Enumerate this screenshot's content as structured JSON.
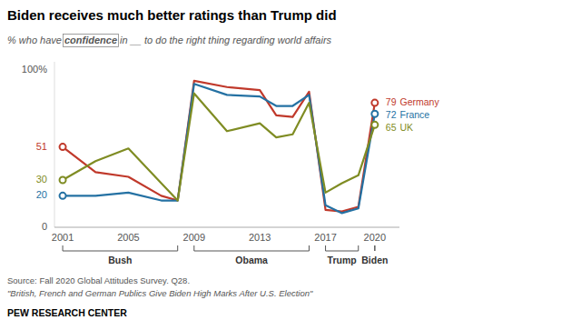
{
  "chart_data": {
    "type": "line",
    "title": "Biden receives much better ratings than Trump did",
    "subtitle": [
      "% who have ",
      "confidence",
      " in __ to do the right thing regarding world affairs"
    ],
    "source": "Source: Fall 2020 Global Attitudes Survey. Q28.",
    "source_note": "\"British, French and German Publics Give Biden High Marks After U.S. Election\"",
    "footer": "PEW RESEARCH CENTER",
    "x": [
      2001,
      2003,
      2005,
      2007,
      2008,
      2009,
      2011,
      2013,
      2014,
      2015,
      2016,
      2017,
      2018,
      2019,
      2020
    ],
    "series": [
      {
        "name": "Germany",
        "color": "#c0392b",
        "values": [
          51,
          35,
          32,
          20,
          17,
          93,
          89,
          87,
          71,
          70,
          86,
          11,
          10,
          13,
          79
        ]
      },
      {
        "name": "France",
        "color": "#2471a3",
        "values": [
          20,
          20,
          22,
          17,
          17,
          91,
          84,
          83,
          77,
          77,
          84,
          14,
          9,
          12,
          72
        ]
      },
      {
        "name": "UK",
        "color": "#7f8c23",
        "values": [
          30,
          42,
          50,
          28,
          17,
          85,
          61,
          66,
          57,
          59,
          79,
          22,
          28,
          33,
          65
        ]
      }
    ],
    "xlim": [
      2000.5,
      2021.5
    ],
    "xticks": [
      2001,
      2005,
      2009,
      2013,
      2017,
      2020
    ],
    "ylim": [
      0,
      105
    ],
    "yticks": [
      0,
      {
        "value": 100,
        "label": "100%"
      }
    ],
    "grid": false,
    "annotations": [
      {
        "label": "Bush",
        "x_start": 2001,
        "x_end": 2008
      },
      {
        "label": "Obama",
        "x_start": 2009,
        "x_end": 2016
      },
      {
        "label": "Trump",
        "x_start": 2017,
        "x_end": 2019
      },
      {
        "label": "Biden",
        "x_start": 2020,
        "x_end": 2020
      }
    ]
  }
}
